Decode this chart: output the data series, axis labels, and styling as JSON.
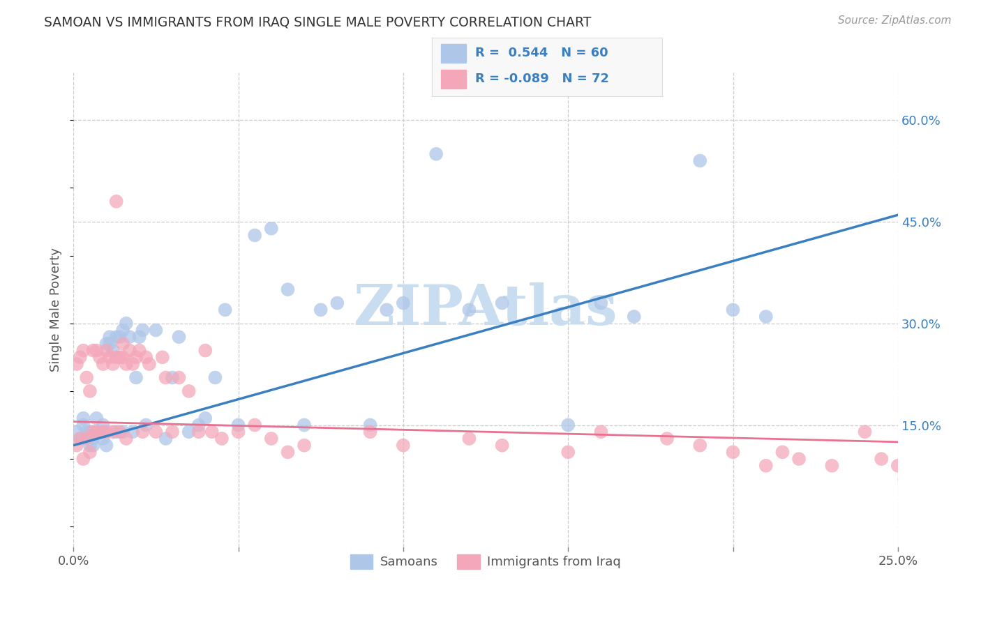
{
  "title": "SAMOAN VS IMMIGRANTS FROM IRAQ SINGLE MALE POVERTY CORRELATION CHART",
  "source": "Source: ZipAtlas.com",
  "ylabel": "Single Male Poverty",
  "xlim": [
    0.0,
    0.25
  ],
  "ylim": [
    -0.03,
    0.67
  ],
  "x_ticks": [
    0.0,
    0.05,
    0.1,
    0.15,
    0.2,
    0.25
  ],
  "x_tick_labels": [
    "0.0%",
    "",
    "",
    "",
    "",
    "25.0%"
  ],
  "y_ticks": [
    0.15,
    0.3,
    0.45,
    0.6
  ],
  "y_tick_labels": [
    "15.0%",
    "30.0%",
    "45.0%",
    "60.0%"
  ],
  "samoans_color": "#aec6e8",
  "iraq_color": "#f4a7b9",
  "samoans_line_color": "#3a7fc1",
  "iraq_line_color": "#e87090",
  "grid_color": "#cccccc",
  "watermark_color": "#c8ddf0",
  "R_samoans": 0.544,
  "N_samoans": 60,
  "R_iraq": -0.089,
  "N_iraq": 72,
  "samoans_line": [
    0.0,
    0.12,
    0.25,
    0.46
  ],
  "iraq_line": [
    0.0,
    0.155,
    0.25,
    0.125
  ],
  "samoans_x": [
    0.001,
    0.002,
    0.003,
    0.003,
    0.004,
    0.004,
    0.005,
    0.005,
    0.006,
    0.006,
    0.007,
    0.007,
    0.008,
    0.009,
    0.009,
    0.01,
    0.01,
    0.011,
    0.011,
    0.012,
    0.013,
    0.013,
    0.014,
    0.015,
    0.015,
    0.016,
    0.017,
    0.018,
    0.019,
    0.02,
    0.021,
    0.022,
    0.025,
    0.028,
    0.03,
    0.032,
    0.035,
    0.038,
    0.04,
    0.043,
    0.046,
    0.05,
    0.055,
    0.06,
    0.065,
    0.07,
    0.075,
    0.08,
    0.09,
    0.095,
    0.1,
    0.11,
    0.12,
    0.13,
    0.15,
    0.16,
    0.17,
    0.19,
    0.2,
    0.21
  ],
  "samoans_y": [
    0.14,
    0.13,
    0.15,
    0.16,
    0.13,
    0.14,
    0.12,
    0.14,
    0.12,
    0.13,
    0.14,
    0.16,
    0.14,
    0.13,
    0.15,
    0.12,
    0.27,
    0.27,
    0.28,
    0.26,
    0.28,
    0.14,
    0.28,
    0.14,
    0.29,
    0.3,
    0.28,
    0.14,
    0.22,
    0.28,
    0.29,
    0.15,
    0.29,
    0.13,
    0.22,
    0.28,
    0.14,
    0.15,
    0.16,
    0.22,
    0.32,
    0.15,
    0.43,
    0.44,
    0.35,
    0.15,
    0.32,
    0.33,
    0.15,
    0.32,
    0.33,
    0.55,
    0.32,
    0.33,
    0.15,
    0.33,
    0.31,
    0.54,
    0.32,
    0.31
  ],
  "iraq_x": [
    0.001,
    0.001,
    0.002,
    0.002,
    0.003,
    0.003,
    0.004,
    0.004,
    0.005,
    0.005,
    0.006,
    0.006,
    0.007,
    0.007,
    0.008,
    0.009,
    0.009,
    0.01,
    0.01,
    0.011,
    0.012,
    0.012,
    0.013,
    0.013,
    0.014,
    0.014,
    0.015,
    0.015,
    0.016,
    0.016,
    0.017,
    0.018,
    0.019,
    0.02,
    0.021,
    0.022,
    0.023,
    0.025,
    0.027,
    0.028,
    0.03,
    0.032,
    0.035,
    0.038,
    0.04,
    0.042,
    0.045,
    0.05,
    0.055,
    0.06,
    0.065,
    0.07,
    0.09,
    0.1,
    0.12,
    0.13,
    0.15,
    0.16,
    0.18,
    0.19,
    0.2,
    0.21,
    0.215,
    0.22,
    0.23,
    0.24,
    0.245,
    0.25,
    0.252,
    0.254,
    0.255,
    0.256
  ],
  "iraq_y": [
    0.12,
    0.24,
    0.13,
    0.25,
    0.1,
    0.26,
    0.13,
    0.22,
    0.11,
    0.2,
    0.26,
    0.14,
    0.26,
    0.14,
    0.25,
    0.14,
    0.24,
    0.26,
    0.14,
    0.25,
    0.24,
    0.14,
    0.48,
    0.25,
    0.25,
    0.14,
    0.27,
    0.25,
    0.24,
    0.13,
    0.26,
    0.24,
    0.25,
    0.26,
    0.14,
    0.25,
    0.24,
    0.14,
    0.25,
    0.22,
    0.14,
    0.22,
    0.2,
    0.14,
    0.26,
    0.14,
    0.13,
    0.14,
    0.15,
    0.13,
    0.11,
    0.12,
    0.14,
    0.12,
    0.13,
    0.12,
    0.11,
    0.14,
    0.13,
    0.12,
    0.11,
    0.09,
    0.11,
    0.1,
    0.09,
    0.14,
    0.1,
    0.09,
    0.07,
    0.07,
    0.06,
    0.07
  ]
}
